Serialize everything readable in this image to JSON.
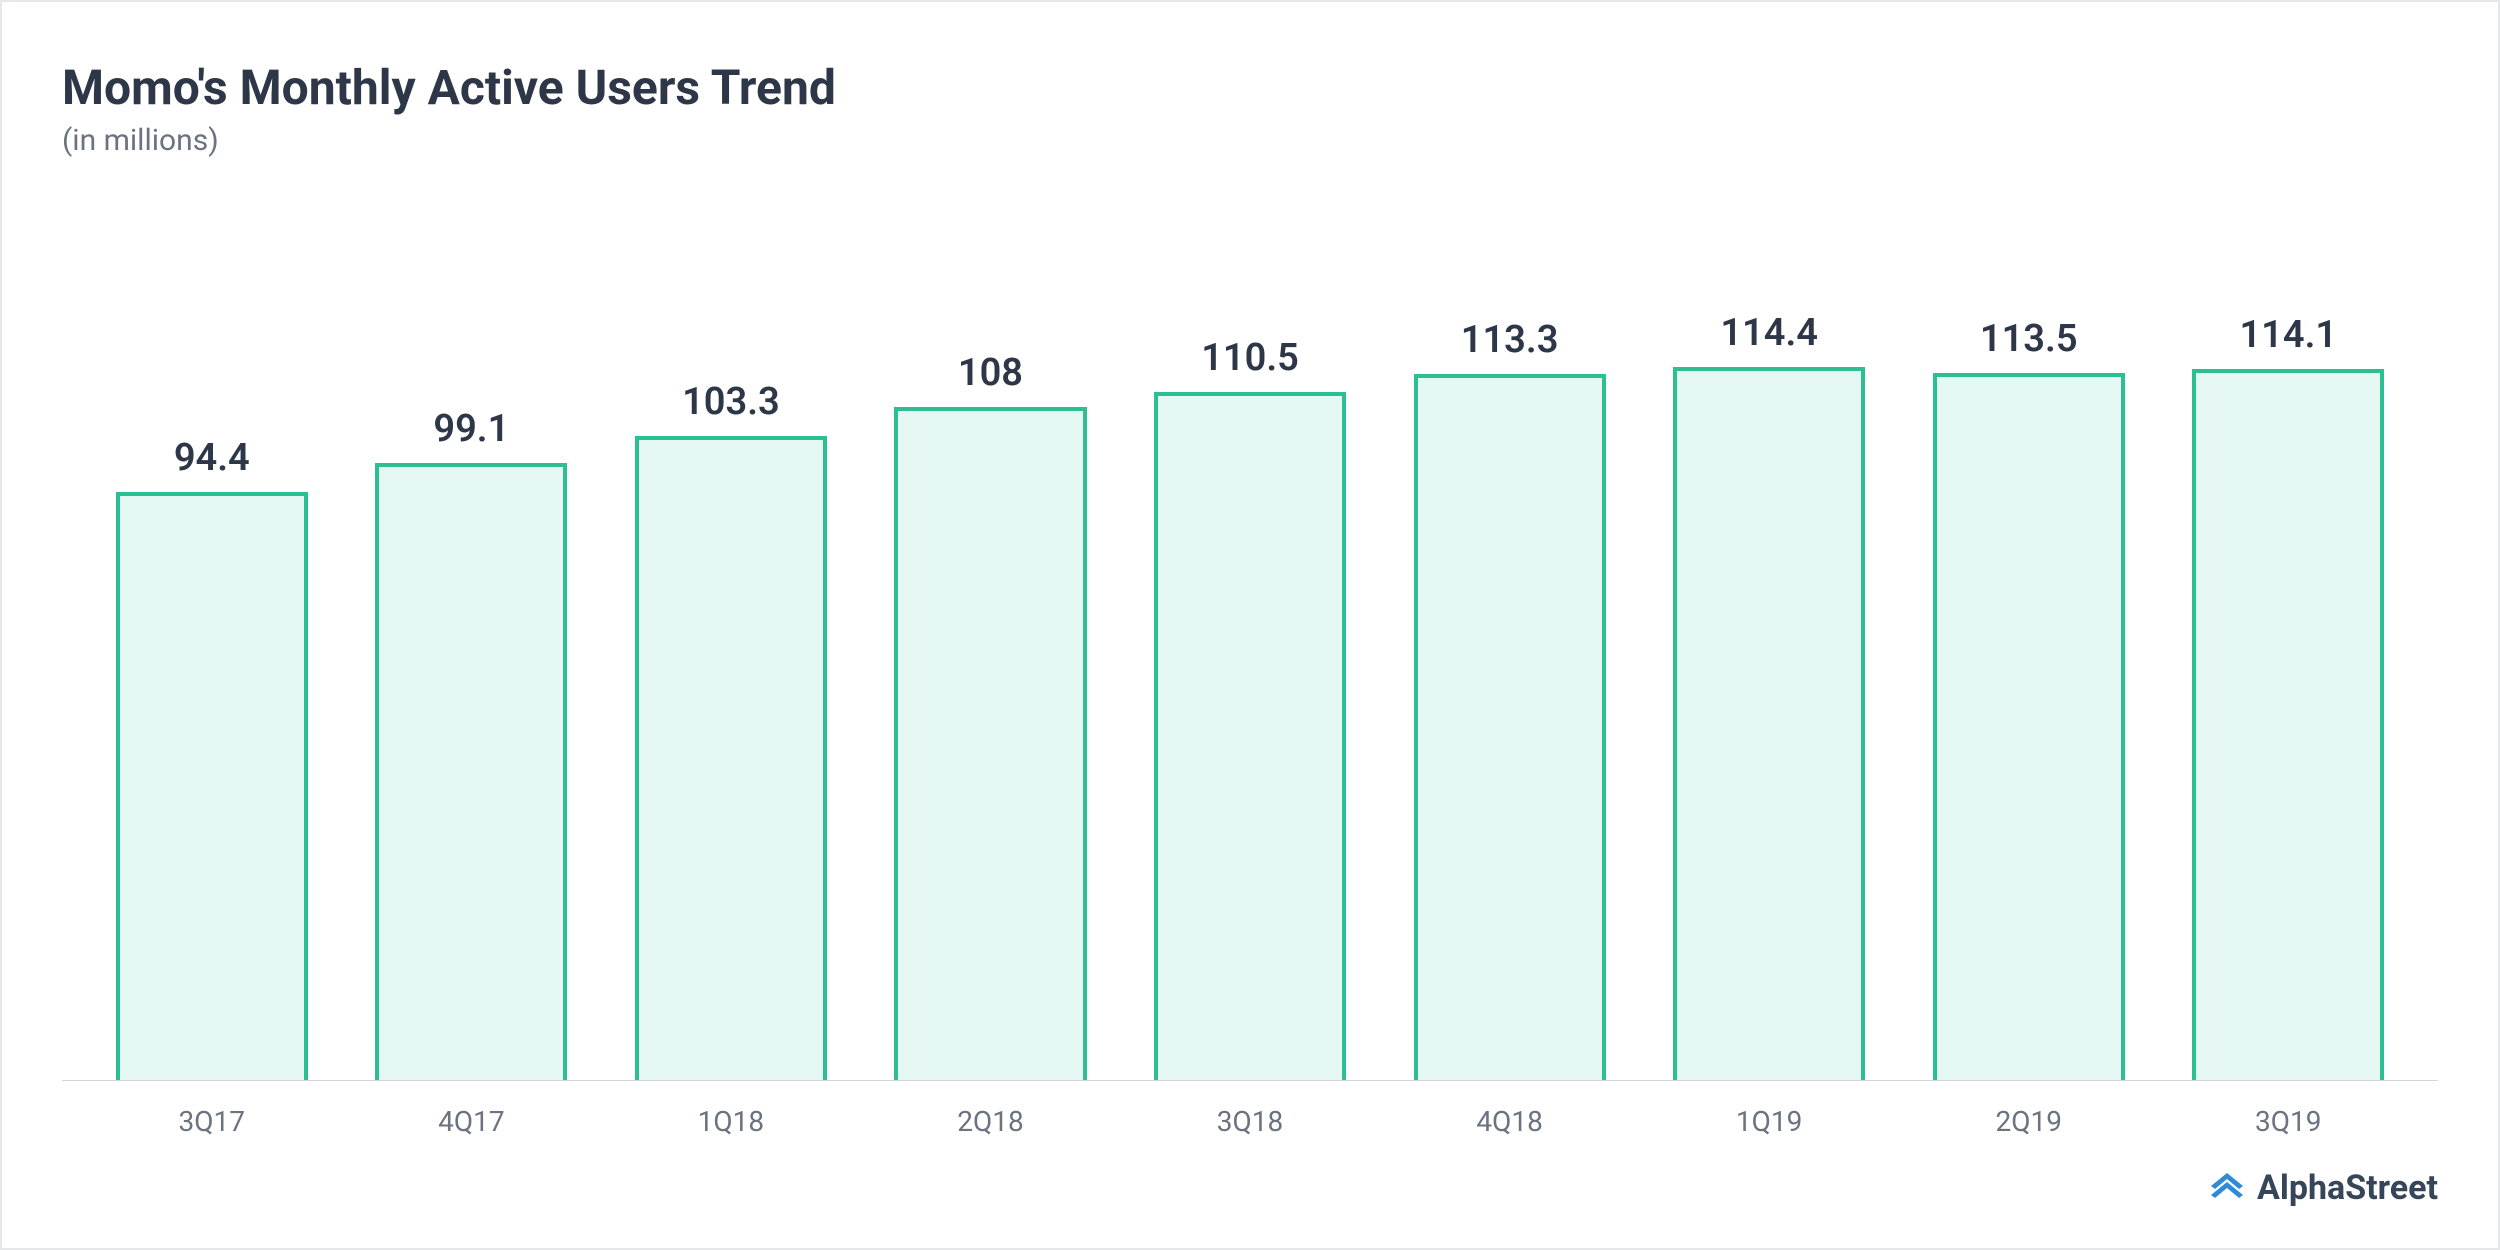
{
  "header": {
    "title": "Momo's Monthly Active Users Trend",
    "subtitle": "(in millions)",
    "title_fontsize": 48,
    "title_color": "#2d3748",
    "subtitle_fontsize": 30,
    "subtitle_color": "#6b7280"
  },
  "chart": {
    "type": "bar",
    "categories": [
      "3Q17",
      "4Q17",
      "1Q18",
      "2Q18",
      "3Q18",
      "4Q18",
      "1Q19",
      "2Q19",
      "3Q19"
    ],
    "values": [
      94.4,
      99.1,
      103.3,
      108,
      110.5,
      113.3,
      114.4,
      113.5,
      114.1
    ],
    "value_labels": [
      "94.4",
      "99.1",
      "103.3",
      "108",
      "110.5",
      "113.3",
      "114.4",
      "113.5",
      "114.1"
    ],
    "ylim": [
      0,
      140
    ],
    "bar_fill_color": "#e6f8f3",
    "bar_border_color": "#2bbf93",
    "bar_border_width": 4,
    "bar_width": 0.74,
    "value_label_fontsize": 38,
    "value_label_color": "#2d3748",
    "xaxis_fontsize": 28,
    "xaxis_color": "#6b7280",
    "axis_line_color": "#d1d5db",
    "background_color": "#ffffff"
  },
  "footer": {
    "brand_name": "AlphaStreet",
    "brand_color": "#374559",
    "brand_fontsize": 34,
    "icon_color": "#2f8bd6"
  }
}
